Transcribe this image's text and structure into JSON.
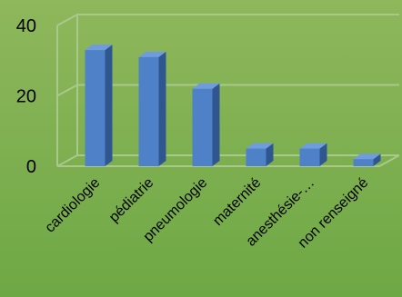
{
  "chart_data": {
    "type": "bar",
    "title": "",
    "xlabel": "",
    "ylabel": "",
    "categories": [
      "cardiologie",
      "pédiatrie",
      "pneumologie",
      "maternité",
      "anesthésie-…",
      "non renseigné"
    ],
    "values": [
      33,
      31,
      22,
      5,
      5,
      2
    ],
    "ylim": [
      0,
      40
    ],
    "yticks": [
      "0",
      "20",
      "40"
    ],
    "style": "3d-bar",
    "grid": true,
    "colors": {
      "bar_front": "#4f81c8",
      "bar_side": "#2f568f",
      "bar_top": "#6f9be0"
    }
  }
}
